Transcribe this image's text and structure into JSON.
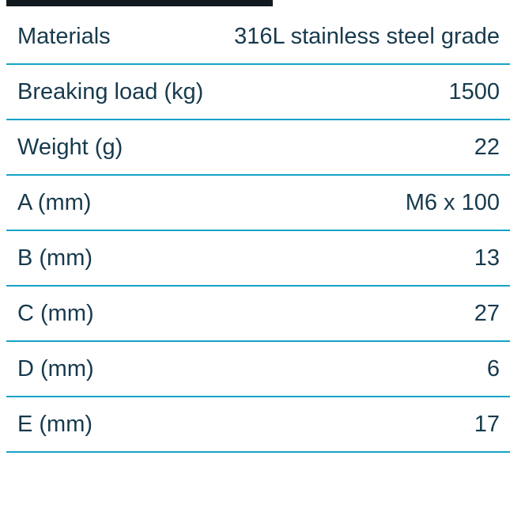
{
  "colors": {
    "text": "#173a4d",
    "divider": "#14a3c6",
    "top_bar": "#111a1f",
    "background": "#ffffff"
  },
  "table": {
    "rows": [
      {
        "label": "Materials",
        "value": "316L stainless steel grade"
      },
      {
        "label": "Breaking load (kg)",
        "value": "1500"
      },
      {
        "label": "Weight (g)",
        "value": "22"
      },
      {
        "label": "A (mm)",
        "value": "M6 x 100"
      },
      {
        "label": "B (mm)",
        "value": "13"
      },
      {
        "label": "C (mm)",
        "value": "27"
      },
      {
        "label": "D (mm)",
        "value": "6"
      },
      {
        "label": "E (mm)",
        "value": "17"
      }
    ]
  }
}
